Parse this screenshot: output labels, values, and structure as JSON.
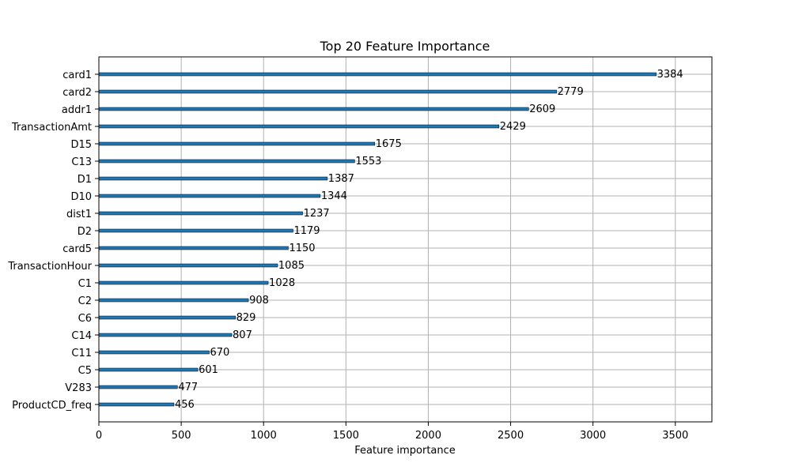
{
  "chart_data": {
    "type": "bar",
    "orientation": "horizontal",
    "title": "Top 20 Feature Importance",
    "xlabel": "Feature importance",
    "ylabel": "",
    "xlim": [
      0,
      3722
    ],
    "xticks": [
      0,
      500,
      1000,
      1500,
      2000,
      2500,
      3000,
      3500
    ],
    "grid": true,
    "categories": [
      "card1",
      "card2",
      "addr1",
      "TransactionAmt",
      "D15",
      "C13",
      "D1",
      "D10",
      "dist1",
      "D2",
      "card5",
      "TransactionHour",
      "C1",
      "C2",
      "C6",
      "C14",
      "C11",
      "C5",
      "V283",
      "ProductCD_freq"
    ],
    "values": [
      3384,
      2779,
      2609,
      2429,
      1675,
      1553,
      1387,
      1344,
      1237,
      1179,
      1150,
      1085,
      1028,
      908,
      829,
      807,
      670,
      601,
      477,
      456
    ],
    "bar_color": "#1f77b4"
  }
}
